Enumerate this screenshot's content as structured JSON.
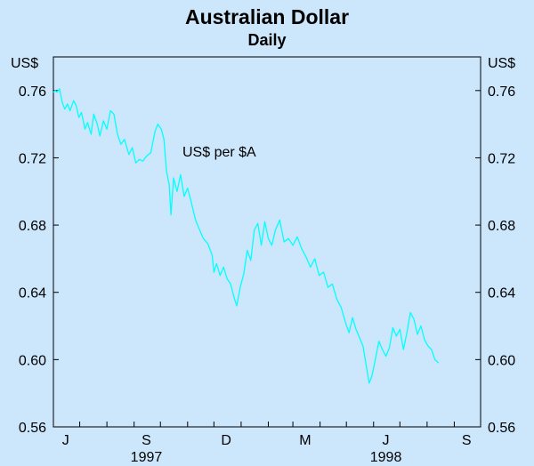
{
  "chart_data": {
    "type": "line",
    "title": "Australian Dollar",
    "subtitle": "Daily",
    "ylabel_left": "US$",
    "ylabel_right": "US$",
    "ylim": [
      0.56,
      0.78
    ],
    "yticks": [
      0.56,
      0.6,
      0.64,
      0.68,
      0.72,
      0.76
    ],
    "ytick_labels": [
      "0.56",
      "0.60",
      "0.64",
      "0.68",
      "0.72",
      "0.76"
    ],
    "xlim": [
      "1997-06-01",
      "1998-10-01"
    ],
    "month_ticks": [
      "1997-06-01",
      "1997-07-01",
      "1997-08-01",
      "1997-09-01",
      "1997-10-01",
      "1997-11-01",
      "1997-12-01",
      "1998-01-01",
      "1998-02-01",
      "1998-03-01",
      "1998-04-01",
      "1998-05-01",
      "1998-06-01",
      "1998-07-01",
      "1998-08-01",
      "1998-09-01",
      "1998-10-01"
    ],
    "x_labels": [
      {
        "label": "J",
        "date": "1997-06-15"
      },
      {
        "label": "S",
        "date": "1997-09-15"
      },
      {
        "label": "D",
        "date": "1997-12-15"
      },
      {
        "label": "M",
        "date": "1998-03-15"
      },
      {
        "label": "J",
        "date": "1998-06-15"
      },
      {
        "label": "S",
        "date": "1998-09-15"
      }
    ],
    "year_labels": [
      {
        "label": "1997",
        "date": "1997-09-15"
      },
      {
        "label": "1998",
        "date": "1998-06-15"
      }
    ],
    "grid": false,
    "annotation": "US$ per $A",
    "series": [
      {
        "name": "US$ per $A",
        "color": "#00ffff",
        "points": [
          [
            "1997-06-01",
            0.759
          ],
          [
            "1997-06-03",
            0.76
          ],
          [
            "1997-06-05",
            0.759
          ],
          [
            "1997-06-08",
            0.761
          ],
          [
            "1997-06-11",
            0.753
          ],
          [
            "1997-06-14",
            0.749
          ],
          [
            "1997-06-17",
            0.752
          ],
          [
            "1997-06-20",
            0.748
          ],
          [
            "1997-06-24",
            0.754
          ],
          [
            "1997-06-27",
            0.751
          ],
          [
            "1997-06-30",
            0.744
          ],
          [
            "1997-07-03",
            0.747
          ],
          [
            "1997-07-07",
            0.737
          ],
          [
            "1997-07-10",
            0.741
          ],
          [
            "1997-07-14",
            0.734
          ],
          [
            "1997-07-17",
            0.746
          ],
          [
            "1997-07-21",
            0.74
          ],
          [
            "1997-07-24",
            0.733
          ],
          [
            "1997-07-28",
            0.742
          ],
          [
            "1997-08-01",
            0.737
          ],
          [
            "1997-08-05",
            0.748
          ],
          [
            "1997-08-09",
            0.746
          ],
          [
            "1997-08-13",
            0.734
          ],
          [
            "1997-08-17",
            0.728
          ],
          [
            "1997-08-21",
            0.731
          ],
          [
            "1997-08-26",
            0.722
          ],
          [
            "1997-08-30",
            0.726
          ],
          [
            "1997-09-03",
            0.717
          ],
          [
            "1997-09-07",
            0.719
          ],
          [
            "1997-09-11",
            0.718
          ],
          [
            "1997-09-15",
            0.721
          ],
          [
            "1997-09-20",
            0.723
          ],
          [
            "1997-09-25",
            0.736
          ],
          [
            "1997-09-28",
            0.74
          ],
          [
            "1997-10-02",
            0.737
          ],
          [
            "1997-10-05",
            0.731
          ],
          [
            "1997-10-08",
            0.712
          ],
          [
            "1997-10-11",
            0.704
          ],
          [
            "1997-10-13",
            0.686
          ],
          [
            "1997-10-16",
            0.708
          ],
          [
            "1997-10-20",
            0.7
          ],
          [
            "1997-10-24",
            0.71
          ],
          [
            "1997-10-28",
            0.697
          ],
          [
            "1997-11-01",
            0.702
          ],
          [
            "1997-11-05",
            0.694
          ],
          [
            "1997-11-10",
            0.683
          ],
          [
            "1997-11-14",
            0.678
          ],
          [
            "1997-11-19",
            0.672
          ],
          [
            "1997-11-24",
            0.669
          ],
          [
            "1997-11-29",
            0.662
          ],
          [
            "1997-12-01",
            0.652
          ],
          [
            "1997-12-04",
            0.657
          ],
          [
            "1997-12-08",
            0.65
          ],
          [
            "1997-12-12",
            0.655
          ],
          [
            "1997-12-16",
            0.648
          ],
          [
            "1997-12-20",
            0.645
          ],
          [
            "1997-12-24",
            0.637
          ],
          [
            "1997-12-27",
            0.632
          ],
          [
            "1997-12-31",
            0.643
          ],
          [
            "1998-01-04",
            0.651
          ],
          [
            "1998-01-08",
            0.665
          ],
          [
            "1998-01-12",
            0.659
          ],
          [
            "1998-01-16",
            0.677
          ],
          [
            "1998-01-20",
            0.681
          ],
          [
            "1998-01-24",
            0.668
          ],
          [
            "1998-01-28",
            0.682
          ],
          [
            "1998-02-01",
            0.672
          ],
          [
            "1998-02-05",
            0.668
          ],
          [
            "1998-02-09",
            0.677
          ],
          [
            "1998-02-14",
            0.683
          ],
          [
            "1998-02-19",
            0.67
          ],
          [
            "1998-02-24",
            0.672
          ],
          [
            "1998-03-01",
            0.668
          ],
          [
            "1998-03-06",
            0.673
          ],
          [
            "1998-03-11",
            0.666
          ],
          [
            "1998-03-16",
            0.661
          ],
          [
            "1998-03-21",
            0.655
          ],
          [
            "1998-03-26",
            0.66
          ],
          [
            "1998-03-31",
            0.65
          ],
          [
            "1998-04-05",
            0.652
          ],
          [
            "1998-04-10",
            0.643
          ],
          [
            "1998-04-15",
            0.645
          ],
          [
            "1998-04-20",
            0.636
          ],
          [
            "1998-04-25",
            0.631
          ],
          [
            "1998-04-30",
            0.622
          ],
          [
            "1998-05-04",
            0.616
          ],
          [
            "1998-05-08",
            0.625
          ],
          [
            "1998-05-12",
            0.618
          ],
          [
            "1998-05-16",
            0.613
          ],
          [
            "1998-05-20",
            0.608
          ],
          [
            "1998-05-24",
            0.595
          ],
          [
            "1998-05-27",
            0.586
          ],
          [
            "1998-05-30",
            0.59
          ],
          [
            "1998-06-03",
            0.6
          ],
          [
            "1998-06-07",
            0.611
          ],
          [
            "1998-06-11",
            0.606
          ],
          [
            "1998-06-15",
            0.602
          ],
          [
            "1998-06-19",
            0.607
          ],
          [
            "1998-06-23",
            0.619
          ],
          [
            "1998-06-27",
            0.614
          ],
          [
            "1998-07-01",
            0.618
          ],
          [
            "1998-07-05",
            0.606
          ],
          [
            "1998-07-09",
            0.616
          ],
          [
            "1998-07-13",
            0.628
          ],
          [
            "1998-07-17",
            0.624
          ],
          [
            "1998-07-21",
            0.615
          ],
          [
            "1998-07-25",
            0.62
          ],
          [
            "1998-07-29",
            0.612
          ],
          [
            "1998-08-02",
            0.608
          ],
          [
            "1998-08-06",
            0.606
          ],
          [
            "1998-08-10",
            0.6
          ],
          [
            "1998-08-14",
            0.598
          ]
        ]
      }
    ]
  }
}
